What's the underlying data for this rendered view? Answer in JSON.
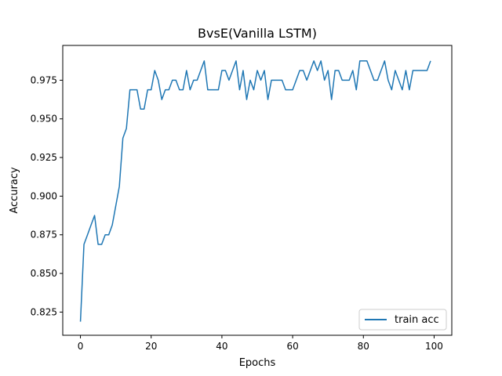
{
  "chart_data": {
    "type": "line",
    "title": "BvsE(Vanilla LSTM)",
    "xlabel": "Epochs",
    "ylabel": "Accuracy",
    "xlim": [
      -5,
      105
    ],
    "ylim": [
      0.81,
      0.9975
    ],
    "xticks": [
      0,
      20,
      40,
      60,
      80,
      100
    ],
    "xtick_labels": [
      "0",
      "20",
      "40",
      "60",
      "80",
      "100"
    ],
    "yticks": [
      0.825,
      0.85,
      0.875,
      0.9,
      0.925,
      0.95,
      0.975
    ],
    "ytick_labels": [
      "0.825",
      "0.850",
      "0.875",
      "0.900",
      "0.925",
      "0.950",
      "0.975"
    ],
    "grid": false,
    "legend_position": "lower right",
    "series": [
      {
        "name": "train acc",
        "color": "#1f77b4",
        "x": [
          0,
          1,
          2,
          3,
          4,
          5,
          6,
          7,
          8,
          9,
          10,
          11,
          12,
          13,
          14,
          15,
          16,
          17,
          18,
          19,
          20,
          21,
          22,
          23,
          24,
          25,
          26,
          27,
          28,
          29,
          30,
          31,
          32,
          33,
          34,
          35,
          36,
          37,
          38,
          39,
          40,
          41,
          42,
          43,
          44,
          45,
          46,
          47,
          48,
          49,
          50,
          51,
          52,
          53,
          54,
          55,
          56,
          57,
          58,
          59,
          60,
          61,
          62,
          63,
          64,
          65,
          66,
          67,
          68,
          69,
          70,
          71,
          72,
          73,
          74,
          75,
          76,
          77,
          78,
          79,
          80,
          81,
          82,
          83,
          84,
          85,
          86,
          87,
          88,
          89,
          90,
          91,
          92,
          93,
          94,
          95,
          96,
          97,
          98,
          99
        ],
        "y": [
          0.8188,
          0.8688,
          0.875,
          0.8813,
          0.8875,
          0.8688,
          0.8688,
          0.875,
          0.875,
          0.8813,
          0.8938,
          0.9063,
          0.9375,
          0.9438,
          0.9688,
          0.9688,
          0.9688,
          0.9563,
          0.9563,
          0.9688,
          0.9688,
          0.9813,
          0.975,
          0.9625,
          0.9688,
          0.9688,
          0.975,
          0.975,
          0.9688,
          0.9688,
          0.9813,
          0.9688,
          0.975,
          0.975,
          0.9813,
          0.9875,
          0.9688,
          0.9688,
          0.9688,
          0.9688,
          0.9813,
          0.9813,
          0.975,
          0.9813,
          0.9875,
          0.9688,
          0.9813,
          0.9625,
          0.975,
          0.9688,
          0.9813,
          0.975,
          0.9813,
          0.9625,
          0.975,
          0.975,
          0.975,
          0.975,
          0.9688,
          0.9688,
          0.9688,
          0.975,
          0.9813,
          0.9813,
          0.975,
          0.9813,
          0.9875,
          0.9813,
          0.9875,
          0.975,
          0.9813,
          0.9625,
          0.9813,
          0.9813,
          0.975,
          0.975,
          0.975,
          0.9813,
          0.9688,
          0.9875,
          0.9875,
          0.9875,
          0.9813,
          0.975,
          0.975,
          0.9813,
          0.9875,
          0.975,
          0.9688,
          0.9813,
          0.975,
          0.9688,
          0.9813,
          0.9688,
          0.9813,
          0.9813,
          0.9813,
          0.9813,
          0.9813,
          0.9875
        ]
      }
    ]
  }
}
